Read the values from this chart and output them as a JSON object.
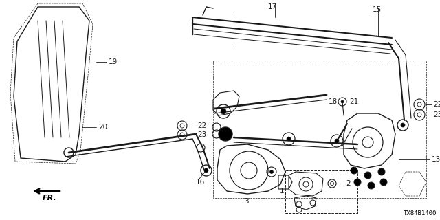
{
  "bg_color": "#ffffff",
  "line_color": "#1a1a1a",
  "diagram_code": "TX84B1400",
  "label_fontsize": 7.5,
  "diagram_code_fontsize": 6.5,
  "figsize": [
    6.4,
    3.2
  ],
  "dpi": 100
}
